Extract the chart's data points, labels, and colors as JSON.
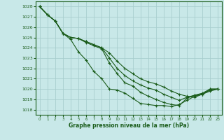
{
  "title": "Graphe pression niveau de la mer (hPa)",
  "bg_color": "#c8e8e8",
  "grid_color": "#a8cece",
  "line_color": "#1a5c1a",
  "xlim": [
    -0.5,
    23.5
  ],
  "ylim": [
    1017.5,
    1028.5
  ],
  "yticks": [
    1018,
    1019,
    1020,
    1021,
    1022,
    1023,
    1024,
    1025,
    1026,
    1027,
    1028
  ],
  "xticks": [
    0,
    1,
    2,
    3,
    4,
    5,
    6,
    7,
    8,
    9,
    10,
    11,
    12,
    13,
    14,
    15,
    16,
    17,
    18,
    19,
    20,
    21,
    22,
    23
  ],
  "series": [
    [
      1028.0,
      1027.2,
      1026.6,
      1025.4,
      1024.8,
      1023.6,
      1022.8,
      1021.7,
      1021.0,
      1020.0,
      1019.9,
      1019.6,
      1019.1,
      1018.6,
      1018.5,
      1018.4,
      1018.4,
      1018.3,
      1018.5,
      1018.9,
      1019.3,
      1019.5,
      1019.8,
      1020.0
    ],
    [
      1028.0,
      1027.2,
      1026.6,
      1025.4,
      1025.0,
      1024.9,
      1024.5,
      1024.2,
      1023.9,
      1022.5,
      1021.5,
      1020.6,
      1020.3,
      1019.7,
      1019.3,
      1019.0,
      1018.7,
      1018.5,
      1018.4,
      1019.1,
      1019.4,
      1019.5,
      1019.9,
      1020.0
    ],
    [
      1028.0,
      1027.2,
      1026.6,
      1025.4,
      1025.0,
      1024.9,
      1024.6,
      1024.3,
      1024.0,
      1023.0,
      1022.0,
      1021.3,
      1020.8,
      1020.4,
      1020.1,
      1019.9,
      1019.5,
      1019.2,
      1018.9,
      1019.2,
      1019.4,
      1019.6,
      1020.0,
      1020.0
    ],
    [
      1028.0,
      1027.2,
      1026.6,
      1025.4,
      1025.0,
      1024.9,
      1024.6,
      1024.3,
      1024.0,
      1023.5,
      1022.7,
      1022.0,
      1021.5,
      1021.0,
      1020.7,
      1020.5,
      1020.2,
      1019.8,
      1019.5,
      1019.3,
      1019.2,
      1019.5,
      1020.0,
      1020.0
    ]
  ]
}
